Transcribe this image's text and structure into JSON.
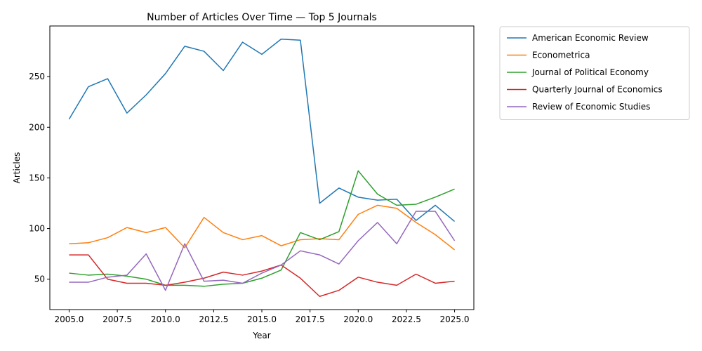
{
  "chart_data": {
    "type": "line",
    "title": "Number of Articles Over Time — Top 5 Journals",
    "xlabel": "Year",
    "ylabel": "Articles",
    "xlim": [
      2004.0,
      2026.0
    ],
    "ylim": [
      20,
      300
    ],
    "x_ticks": [
      2005.0,
      2007.5,
      2010.0,
      2012.5,
      2015.0,
      2017.5,
      2020.0,
      2022.5,
      2025.0
    ],
    "x_tick_labels": [
      "2005.0",
      "2007.5",
      "2010.0",
      "2012.5",
      "2015.0",
      "2017.5",
      "2020.0",
      "2022.5",
      "2025.0"
    ],
    "y_ticks": [
      50,
      100,
      150,
      200,
      250
    ],
    "y_tick_labels": [
      "50",
      "100",
      "150",
      "200",
      "250"
    ],
    "grid": false,
    "legend_position": "outside-top-right",
    "x": [
      2005,
      2006,
      2007,
      2008,
      2009,
      2010,
      2011,
      2012,
      2013,
      2014,
      2015,
      2016,
      2017,
      2018,
      2019,
      2020,
      2021,
      2022,
      2023,
      2024,
      2025
    ],
    "series": [
      {
        "name": "American Economic Review",
        "color": "#1f77b4",
        "values": [
          208,
          240,
          248,
          214,
          232,
          253,
          280,
          275,
          256,
          284,
          272,
          287,
          286,
          125,
          140,
          131,
          128,
          129,
          108,
          123,
          107
        ]
      },
      {
        "name": "Econometrica",
        "color": "#ff7f0e",
        "values": [
          85,
          86,
          91,
          101,
          96,
          101,
          81,
          111,
          96,
          89,
          93,
          83,
          89,
          90,
          89,
          114,
          123,
          120,
          106,
          94,
          79
        ]
      },
      {
        "name": "Journal of Political Economy",
        "color": "#2ca02c",
        "values": [
          56,
          54,
          55,
          53,
          50,
          44,
          44,
          43,
          45,
          46,
          51,
          59,
          96,
          89,
          97,
          157,
          134,
          123,
          124,
          131,
          139
        ]
      },
      {
        "name": "Quarterly Journal of Economics",
        "color": "#d62728",
        "values": [
          74,
          74,
          50,
          46,
          46,
          44,
          47,
          51,
          57,
          54,
          58,
          64,
          51,
          33,
          39,
          52,
          47,
          44,
          55,
          46,
          48
        ]
      },
      {
        "name": "Review of Economic Studies",
        "color": "#9467bd",
        "values": [
          47,
          47,
          52,
          54,
          75,
          39,
          85,
          48,
          49,
          46,
          56,
          64,
          78,
          74,
          65,
          88,
          106,
          85,
          117,
          117,
          88
        ]
      }
    ]
  }
}
